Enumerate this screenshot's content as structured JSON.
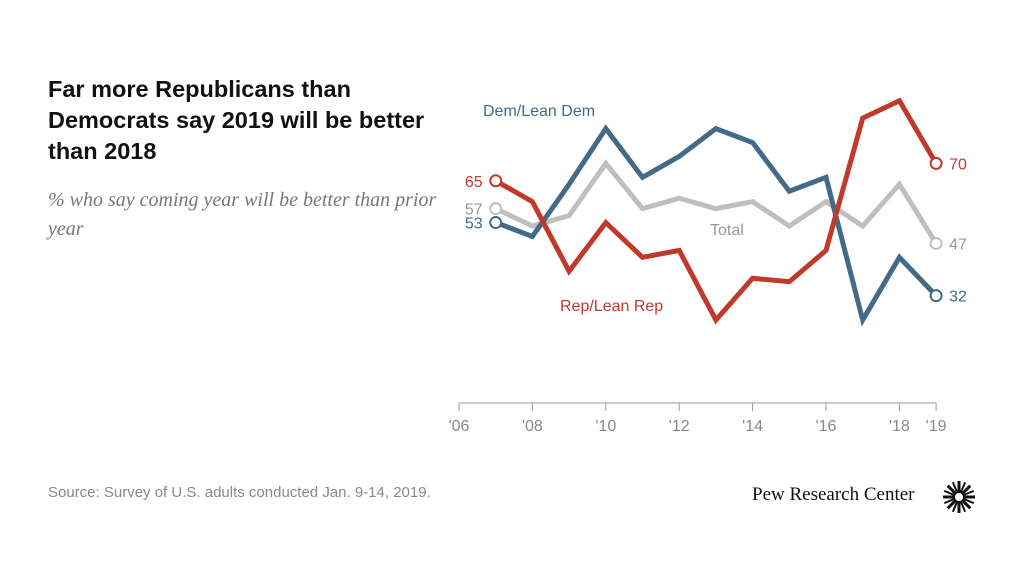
{
  "chart_data": {
    "type": "line",
    "title": "Far more Republicans than Democrats say 2019 will be better than 2018",
    "subtitle": "% who say coming year will be better than prior year",
    "x": [
      2007,
      2008,
      2009,
      2010,
      2011,
      2012,
      2013,
      2014,
      2015,
      2016,
      2017,
      2018,
      2019
    ],
    "xlim": [
      2006,
      2019
    ],
    "ylim": [
      0,
      100
    ],
    "x_ticks": [
      "'06",
      "'08",
      "'10",
      "'12",
      "'14",
      "'16",
      "'18",
      "'19"
    ],
    "x_tick_values": [
      2006,
      2008,
      2010,
      2012,
      2014,
      2016,
      2018,
      2019
    ],
    "grid": false,
    "series": [
      {
        "name": "Rep/Lean Rep",
        "color": "#c0392b",
        "values": [
          65,
          59,
          39,
          53,
          43,
          45,
          25,
          37,
          36,
          45,
          83,
          88,
          70
        ],
        "start_label": "65",
        "end_label": "70"
      },
      {
        "name": "Dem/Lean Dem",
        "color": "#436a86",
        "values": [
          53,
          49,
          64,
          80,
          66,
          72,
          80,
          76,
          62,
          66,
          25,
          43,
          32
        ],
        "start_label": "53",
        "end_label": "32"
      },
      {
        "name": "Total",
        "color": "#bfbfbf",
        "values": [
          57,
          52,
          55,
          70,
          57,
          60,
          57,
          59,
          52,
          59,
          52,
          64,
          47
        ],
        "start_label": "57",
        "end_label": "47"
      }
    ],
    "label_colors": {
      "Total": "#999999"
    }
  },
  "source": "Source: Survey of U.S. adults conducted Jan. 9-14, 2019.",
  "brand": "Pew Research Center",
  "brand_icon": "pew-sunburst-icon"
}
